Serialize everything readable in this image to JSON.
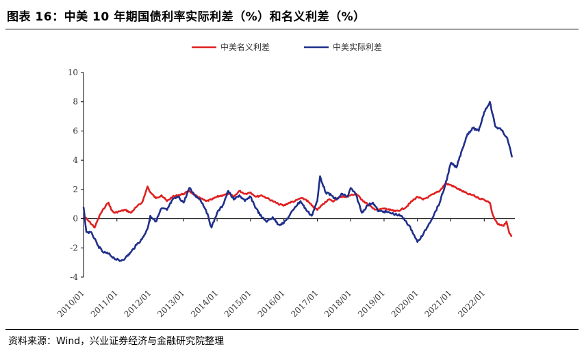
{
  "title": "图表 16：中美 10 年期国债利率实际利差（%）和名义利差（%）",
  "source": "资料来源：Wind，兴业证券经济与金融研究院整理",
  "chart_data": {
    "type": "line",
    "ylim": [
      -4,
      10
    ],
    "yticks": [
      -4,
      -2,
      0,
      2,
      4,
      6,
      8,
      10
    ],
    "xrange": [
      "2010/01",
      "2022/12"
    ],
    "xticks": [
      "2010/01",
      "2011/01",
      "2012/01",
      "2013/01",
      "2014/01",
      "2015/01",
      "2016/01",
      "2017/01",
      "2018/01",
      "2019/01",
      "2020/01",
      "2021/01",
      "2022/01"
    ],
    "legend_position": "top-center",
    "series": [
      {
        "name": "中美名义利差",
        "color": "#e02020",
        "points": [
          [
            "2010/01",
            0.2
          ],
          [
            "2010/03",
            -0.2
          ],
          [
            "2010/05",
            -0.6
          ],
          [
            "2010/07",
            0.3
          ],
          [
            "2010/09",
            0.9
          ],
          [
            "2010/10",
            1.1
          ],
          [
            "2010/11",
            0.6
          ],
          [
            "2010/12",
            0.4
          ],
          [
            "2011/02",
            0.5
          ],
          [
            "2011/04",
            0.6
          ],
          [
            "2011/06",
            0.4
          ],
          [
            "2011/08",
            0.8
          ],
          [
            "2011/10",
            1.1
          ],
          [
            "2011/11",
            1.6
          ],
          [
            "2011/12",
            2.2
          ],
          [
            "2012/01",
            1.8
          ],
          [
            "2012/03",
            1.4
          ],
          [
            "2012/05",
            1.6
          ],
          [
            "2012/07",
            1.2
          ],
          [
            "2012/09",
            1.5
          ],
          [
            "2012/11",
            1.6
          ],
          [
            "2013/01",
            1.7
          ],
          [
            "2013/03",
            1.9
          ],
          [
            "2013/05",
            1.6
          ],
          [
            "2013/07",
            1.4
          ],
          [
            "2013/09",
            1.2
          ],
          [
            "2013/11",
            1.3
          ],
          [
            "2014/01",
            1.5
          ],
          [
            "2014/03",
            1.6
          ],
          [
            "2014/05",
            1.7
          ],
          [
            "2014/07",
            1.5
          ],
          [
            "2014/09",
            1.9
          ],
          [
            "2014/11",
            1.7
          ],
          [
            "2015/01",
            1.8
          ],
          [
            "2015/03",
            1.5
          ],
          [
            "2015/05",
            1.6
          ],
          [
            "2015/07",
            1.4
          ],
          [
            "2015/09",
            1.2
          ],
          [
            "2015/11",
            1.0
          ],
          [
            "2016/01",
            0.9
          ],
          [
            "2016/03",
            1.1
          ],
          [
            "2016/05",
            1.2
          ],
          [
            "2016/07",
            1.4
          ],
          [
            "2016/09",
            1.3
          ],
          [
            "2016/11",
            0.9
          ],
          [
            "2017/01",
            0.6
          ],
          [
            "2017/03",
            1.0
          ],
          [
            "2017/05",
            1.3
          ],
          [
            "2017/07",
            1.2
          ],
          [
            "2017/09",
            1.5
          ],
          [
            "2017/11",
            1.5
          ],
          [
            "2018/01",
            1.6
          ],
          [
            "2018/03",
            1.7
          ],
          [
            "2018/05",
            1.3
          ],
          [
            "2018/07",
            1.0
          ],
          [
            "2018/09",
            0.7
          ],
          [
            "2018/11",
            0.6
          ],
          [
            "2019/01",
            0.7
          ],
          [
            "2019/03",
            0.6
          ],
          [
            "2019/05",
            0.5
          ],
          [
            "2019/07",
            0.6
          ],
          [
            "2019/09",
            0.8
          ],
          [
            "2019/11",
            1.2
          ],
          [
            "2020/01",
            1.5
          ],
          [
            "2020/03",
            1.3
          ],
          [
            "2020/05",
            1.5
          ],
          [
            "2020/07",
            1.7
          ],
          [
            "2020/09",
            1.9
          ],
          [
            "2020/11",
            2.4
          ],
          [
            "2021/01",
            2.3
          ],
          [
            "2021/03",
            2.1
          ],
          [
            "2021/05",
            1.9
          ],
          [
            "2021/07",
            1.7
          ],
          [
            "2021/09",
            1.6
          ],
          [
            "2021/11",
            1.4
          ],
          [
            "2022/01",
            1.3
          ],
          [
            "2022/03",
            1.1
          ],
          [
            "2022/04",
            0.3
          ],
          [
            "2022/05",
            -0.1
          ],
          [
            "2022/06",
            -0.4
          ],
          [
            "2022/08",
            -0.5
          ],
          [
            "2022/09",
            -0.2
          ],
          [
            "2022/10",
            -1.0
          ],
          [
            "2022/11",
            -1.2
          ]
        ]
      },
      {
        "name": "中美实际利差",
        "color": "#1f2f8a",
        "points": [
          [
            "2010/01",
            0.8
          ],
          [
            "2010/02",
            -0.9
          ],
          [
            "2010/04",
            -1.0
          ],
          [
            "2010/06",
            -1.8
          ],
          [
            "2010/08",
            -2.3
          ],
          [
            "2010/10",
            -2.4
          ],
          [
            "2010/12",
            -2.7
          ],
          [
            "2011/02",
            -2.9
          ],
          [
            "2011/04",
            -2.7
          ],
          [
            "2011/06",
            -2.3
          ],
          [
            "2011/08",
            -1.8
          ],
          [
            "2011/10",
            -1.4
          ],
          [
            "2011/12",
            -0.7
          ],
          [
            "2012/01",
            0.2
          ],
          [
            "2012/03",
            -0.2
          ],
          [
            "2012/05",
            0.7
          ],
          [
            "2012/07",
            0.6
          ],
          [
            "2012/09",
            1.3
          ],
          [
            "2012/11",
            1.5
          ],
          [
            "2013/01",
            1.1
          ],
          [
            "2013/03",
            2.1
          ],
          [
            "2013/05",
            1.6
          ],
          [
            "2013/07",
            1.3
          ],
          [
            "2013/09",
            0.6
          ],
          [
            "2013/11",
            -0.6
          ],
          [
            "2014/01",
            0.4
          ],
          [
            "2014/03",
            0.9
          ],
          [
            "2014/05",
            1.9
          ],
          [
            "2014/07",
            1.3
          ],
          [
            "2014/09",
            1.6
          ],
          [
            "2014/11",
            1.2
          ],
          [
            "2015/01",
            1.5
          ],
          [
            "2015/03",
            0.7
          ],
          [
            "2015/05",
            0.1
          ],
          [
            "2015/07",
            -0.2
          ],
          [
            "2015/09",
            0.1
          ],
          [
            "2015/11",
            -0.4
          ],
          [
            "2016/01",
            -0.3
          ],
          [
            "2016/03",
            0.2
          ],
          [
            "2016/05",
            0.8
          ],
          [
            "2016/07",
            1.2
          ],
          [
            "2016/09",
            0.6
          ],
          [
            "2016/11",
            0.2
          ],
          [
            "2017/01",
            1.2
          ],
          [
            "2017/02",
            2.9
          ],
          [
            "2017/04",
            1.8
          ],
          [
            "2017/06",
            1.6
          ],
          [
            "2017/08",
            1.3
          ],
          [
            "2017/10",
            1.7
          ],
          [
            "2017/12",
            1.5
          ],
          [
            "2018/01",
            2.1
          ],
          [
            "2018/03",
            1.6
          ],
          [
            "2018/05",
            0.4
          ],
          [
            "2018/07",
            0.9
          ],
          [
            "2018/09",
            1.1
          ],
          [
            "2018/11",
            0.5
          ],
          [
            "2019/01",
            0.5
          ],
          [
            "2019/03",
            0.4
          ],
          [
            "2019/05",
            0.3
          ],
          [
            "2019/07",
            0.2
          ],
          [
            "2019/09",
            -0.2
          ],
          [
            "2019/11",
            -0.8
          ],
          [
            "2020/01",
            -1.6
          ],
          [
            "2020/03",
            -1.1
          ],
          [
            "2020/05",
            -0.4
          ],
          [
            "2020/07",
            0.3
          ],
          [
            "2020/09",
            1.1
          ],
          [
            "2020/11",
            2.3
          ],
          [
            "2021/01",
            3.8
          ],
          [
            "2021/03",
            3.5
          ],
          [
            "2021/05",
            4.7
          ],
          [
            "2021/07",
            5.8
          ],
          [
            "2021/09",
            6.2
          ],
          [
            "2021/11",
            6.0
          ],
          [
            "2022/01",
            7.3
          ],
          [
            "2022/03",
            8.0
          ],
          [
            "2022/05",
            6.3
          ],
          [
            "2022/07",
            6.1
          ],
          [
            "2022/09",
            5.6
          ],
          [
            "2022/10",
            5.0
          ],
          [
            "2022/11",
            4.2
          ]
        ]
      }
    ]
  }
}
